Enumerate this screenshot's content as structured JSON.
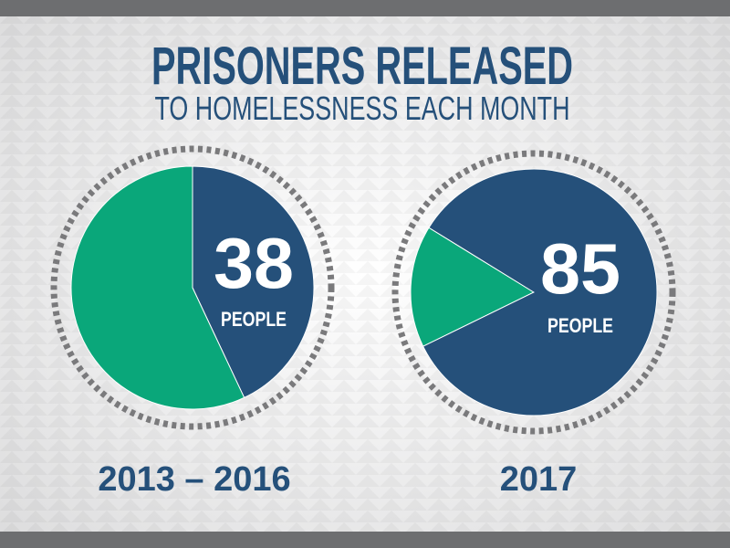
{
  "title": "PRISONERS RELEASED",
  "subtitle": "TO HOMELESSNESS EACH MONTH",
  "chart_data": [
    {
      "type": "pie",
      "values": [
        43,
        57
      ],
      "colors": [
        "#25507a",
        "#0aa77a"
      ],
      "center_value": 38,
      "center_label": "PEOPLE",
      "caption": "2013 – 2016"
    },
    {
      "type": "pie",
      "values": [
        16,
        84
      ],
      "colors": [
        "#0aa77a",
        "#25507a"
      ],
      "center_value": 85,
      "center_label": "PEOPLE",
      "caption": "2017"
    }
  ]
}
